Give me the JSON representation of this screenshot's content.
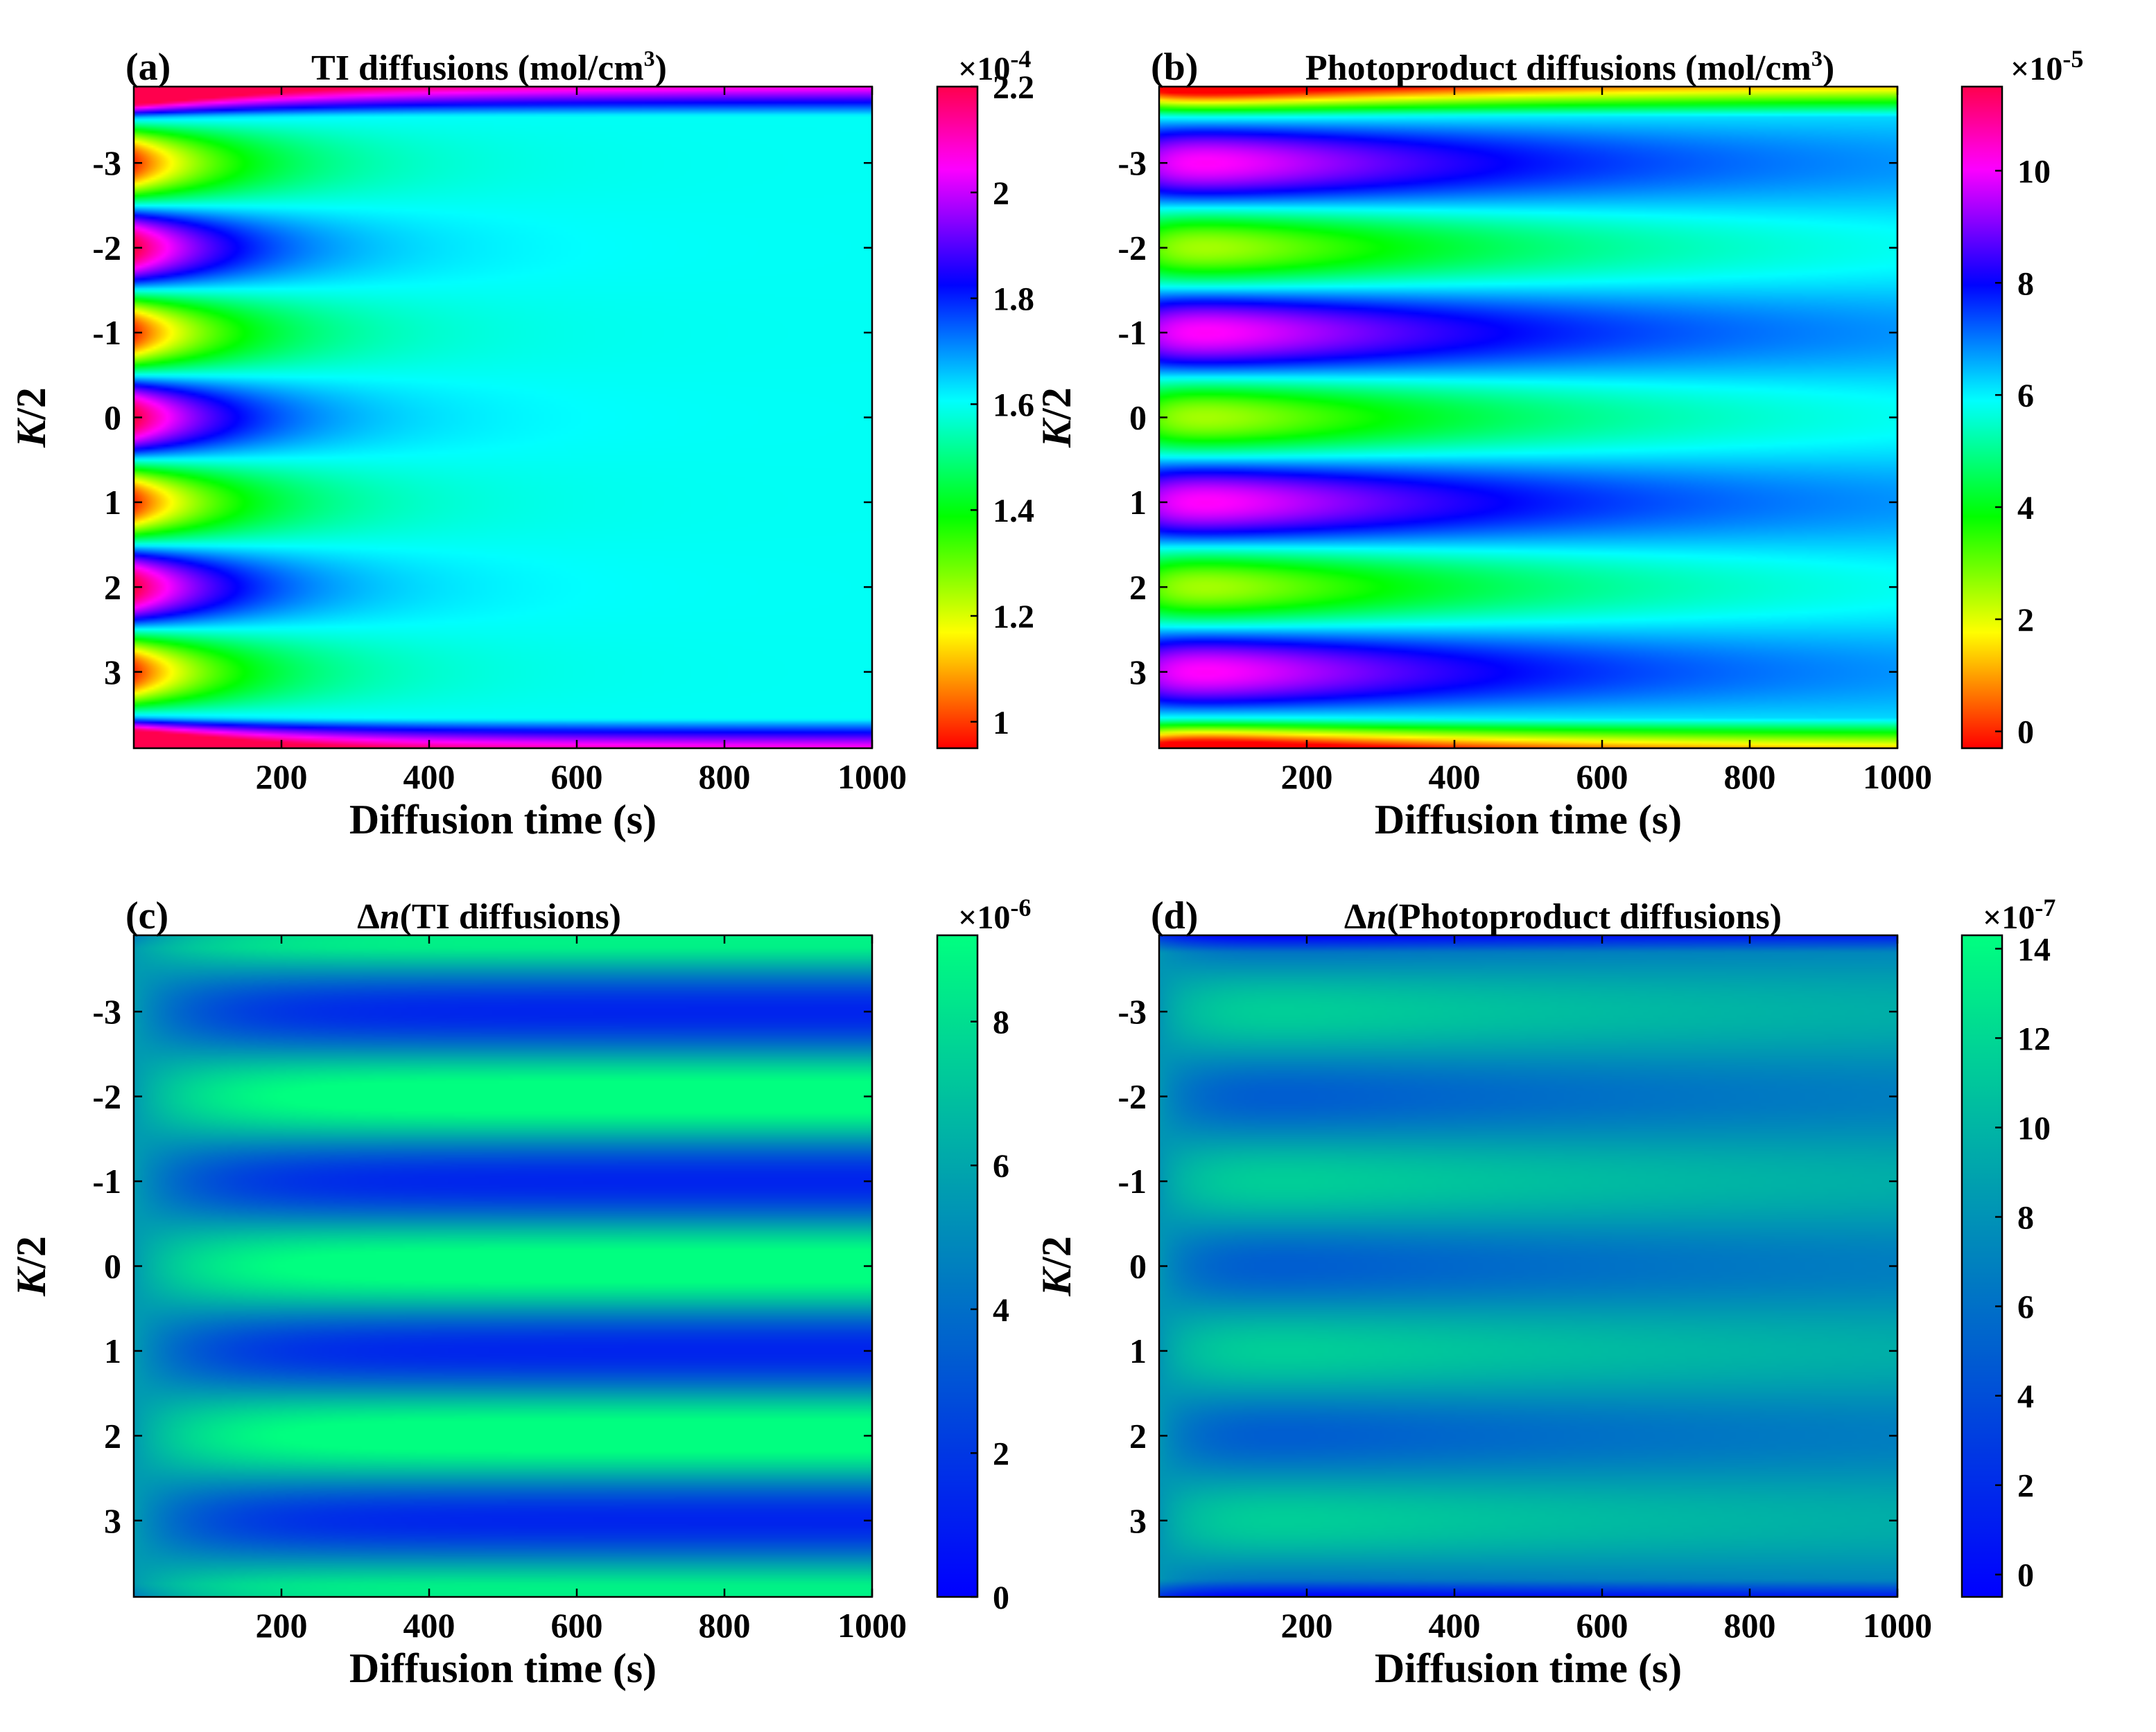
{
  "figure": {
    "panels": [
      {
        "id": "a",
        "tag": "(a)",
        "title": "TI diffusions (mol/cm",
        "title_sup": "3",
        "title_tail": ")",
        "colormap": "hsv",
        "pattern": "ti",
        "colorbar": {
          "min": 0.95,
          "max": 2.2,
          "ticks": [
            1,
            1.2,
            1.4,
            1.6,
            1.8,
            2,
            2.2
          ],
          "tick_labels": [
            "1",
            "1.2",
            "1.4",
            "1.6",
            "1.8",
            "2",
            "2.2"
          ],
          "exponent": "×10",
          "exponent_power": "-4"
        }
      },
      {
        "id": "b",
        "tag": "(b)",
        "title": "Photoproduct diffusions (mol/cm",
        "title_sup": "3",
        "title_tail": ")",
        "colormap": "hsv",
        "pattern": "photo",
        "colorbar": {
          "min": -0.3,
          "max": 11.5,
          "ticks": [
            0,
            2,
            4,
            6,
            8,
            10
          ],
          "tick_labels": [
            "0",
            "2",
            "4",
            "6",
            "8",
            "10"
          ],
          "exponent": "×10",
          "exponent_power": "-5"
        }
      },
      {
        "id": "c",
        "tag": "(c)",
        "title_delta": "Δ",
        "title_var": "n",
        "title_rest": "(TI diffusions)",
        "colormap": "winter",
        "pattern": "dn_ti",
        "colorbar": {
          "min": 0,
          "max": 9.2,
          "ticks": [
            0,
            2,
            4,
            6,
            8
          ],
          "tick_labels": [
            "0",
            "2",
            "4",
            "6",
            "8"
          ],
          "exponent": "×10",
          "exponent_power": "-6"
        }
      },
      {
        "id": "d",
        "tag": "(d)",
        "title_delta": "Δ",
        "title_var": "n",
        "title_rest": "(Photoproduct diffusions)",
        "colormap": "winter",
        "pattern": "dn_photo",
        "colorbar": {
          "min": -0.5,
          "max": 14.3,
          "ticks": [
            0,
            2,
            4,
            6,
            8,
            10,
            12,
            14
          ],
          "tick_labels": [
            "0",
            "2",
            "4",
            "6",
            "8",
            "10",
            "12",
            "14"
          ],
          "exponent": "×10",
          "exponent_power": "-7"
        }
      }
    ]
  },
  "chart_data": {
    "type": "heatmap",
    "xlabel": "Diffusion time (s)",
    "ylabel_var": "K",
    "ylabel_rest": "/2",
    "xlim": [
      0,
      1000
    ],
    "ylim": [
      -3.9,
      3.9
    ],
    "x_ticks": [
      200,
      400,
      600,
      800,
      1000
    ],
    "x_tick_labels": [
      "200",
      "400",
      "600",
      "800",
      "1000"
    ],
    "y_ticks": [
      -3,
      -2,
      -1,
      0,
      1,
      2,
      3
    ],
    "y_tick_labels": [
      "-3",
      "-2",
      "-1",
      "0",
      "1",
      "2",
      "3"
    ],
    "panels": [
      {
        "id": "a",
        "quantity": "TI concentration",
        "units": "mol/cm^3 ×10^-4",
        "initial_max": 2.2,
        "initial_min": 0.95,
        "equilibrium": 1.6
      },
      {
        "id": "b",
        "quantity": "Photoproduct concentration",
        "units": "mol/cm^3 ×10^-5",
        "initial_max": 11.5,
        "initial_min": 0,
        "equilibrium": 6.5
      },
      {
        "id": "c",
        "quantity": "Δn (TI diffusions)",
        "units": "×10^-6",
        "min": 0,
        "max": 9,
        "background": 5.5
      },
      {
        "id": "d",
        "quantity": "Δn (Photoproduct diffusions)",
        "units": "×10^-7",
        "min": 0,
        "max": 14,
        "background": 8.5
      }
    ]
  }
}
